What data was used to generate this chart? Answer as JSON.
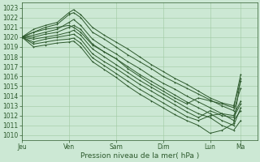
{
  "title": "",
  "xlabel": "Pression niveau de la mer( hPa )",
  "ylabel": "",
  "bg_color": "#cce8d4",
  "plot_bg_color": "#cce8d4",
  "line_color": "#2d5a2d",
  "grid_color": "#9fc9a0",
  "tick_color": "#2d5a2d",
  "ylim": [
    1009.5,
    1023.5
  ],
  "yticks": [
    1010,
    1011,
    1012,
    1013,
    1014,
    1015,
    1016,
    1017,
    1018,
    1019,
    1020,
    1021,
    1022,
    1023
  ],
  "day_positions": [
    0,
    0.2,
    0.4,
    0.6,
    0.8,
    0.93
  ],
  "day_labels": [
    "Jeu",
    "Ven",
    "Sam",
    "Dim",
    "Lun",
    "Ma"
  ],
  "xlim": [
    0.0,
    1.0
  ],
  "lines": [
    [
      [
        0.0,
        1020.0
      ],
      [
        0.05,
        1020.8
      ],
      [
        0.1,
        1021.2
      ],
      [
        0.15,
        1021.5
      ],
      [
        0.2,
        1022.5
      ],
      [
        0.22,
        1022.8
      ],
      [
        0.25,
        1022.3
      ],
      [
        0.3,
        1021.0
      ],
      [
        0.35,
        1020.2
      ],
      [
        0.4,
        1019.5
      ],
      [
        0.45,
        1018.8
      ],
      [
        0.5,
        1018.0
      ],
      [
        0.55,
        1017.2
      ],
      [
        0.6,
        1016.5
      ],
      [
        0.65,
        1015.8
      ],
      [
        0.7,
        1015.2
      ],
      [
        0.75,
        1014.5
      ],
      [
        0.8,
        1013.8
      ],
      [
        0.85,
        1013.3
      ],
      [
        0.9,
        1013.0
      ],
      [
        0.93,
        1015.5
      ]
    ],
    [
      [
        0.0,
        1020.0
      ],
      [
        0.05,
        1020.5
      ],
      [
        0.1,
        1021.0
      ],
      [
        0.15,
        1021.3
      ],
      [
        0.2,
        1022.3
      ],
      [
        0.22,
        1022.5
      ],
      [
        0.25,
        1022.0
      ],
      [
        0.3,
        1020.5
      ],
      [
        0.35,
        1019.8
      ],
      [
        0.4,
        1019.0
      ],
      [
        0.45,
        1018.2
      ],
      [
        0.5,
        1017.5
      ],
      [
        0.55,
        1016.8
      ],
      [
        0.6,
        1016.0
      ],
      [
        0.65,
        1015.4
      ],
      [
        0.7,
        1014.8
      ],
      [
        0.75,
        1014.2
      ],
      [
        0.8,
        1013.6
      ],
      [
        0.85,
        1013.0
      ],
      [
        0.9,
        1012.5
      ],
      [
        0.93,
        1014.8
      ]
    ],
    [
      [
        0.0,
        1020.0
      ],
      [
        0.05,
        1020.2
      ],
      [
        0.1,
        1020.5
      ],
      [
        0.15,
        1020.8
      ],
      [
        0.2,
        1021.5
      ],
      [
        0.22,
        1021.8
      ],
      [
        0.25,
        1021.2
      ],
      [
        0.3,
        1019.8
      ],
      [
        0.35,
        1019.0
      ],
      [
        0.4,
        1018.3
      ],
      [
        0.45,
        1017.5
      ],
      [
        0.5,
        1016.8
      ],
      [
        0.55,
        1016.0
      ],
      [
        0.6,
        1015.3
      ],
      [
        0.65,
        1014.7
      ],
      [
        0.7,
        1014.0
      ],
      [
        0.75,
        1013.4
      ],
      [
        0.8,
        1012.8
      ],
      [
        0.85,
        1012.2
      ],
      [
        0.9,
        1012.0
      ],
      [
        0.93,
        1013.5
      ]
    ],
    [
      [
        0.0,
        1020.0
      ],
      [
        0.05,
        1020.0
      ],
      [
        0.1,
        1020.3
      ],
      [
        0.15,
        1020.5
      ],
      [
        0.2,
        1021.0
      ],
      [
        0.22,
        1021.2
      ],
      [
        0.25,
        1020.8
      ],
      [
        0.3,
        1019.3
      ],
      [
        0.35,
        1018.5
      ],
      [
        0.4,
        1017.8
      ],
      [
        0.45,
        1017.0
      ],
      [
        0.5,
        1016.2
      ],
      [
        0.55,
        1015.5
      ],
      [
        0.6,
        1014.8
      ],
      [
        0.65,
        1014.1
      ],
      [
        0.7,
        1013.4
      ],
      [
        0.75,
        1012.8
      ],
      [
        0.8,
        1012.2
      ],
      [
        0.85,
        1011.5
      ],
      [
        0.9,
        1011.0
      ],
      [
        0.93,
        1012.8
      ]
    ],
    [
      [
        0.0,
        1020.0
      ],
      [
        0.05,
        1019.8
      ],
      [
        0.1,
        1020.0
      ],
      [
        0.15,
        1020.2
      ],
      [
        0.2,
        1020.5
      ],
      [
        0.22,
        1020.7
      ],
      [
        0.25,
        1020.2
      ],
      [
        0.3,
        1018.8
      ],
      [
        0.35,
        1018.0
      ],
      [
        0.4,
        1017.2
      ],
      [
        0.45,
        1016.4
      ],
      [
        0.5,
        1015.6
      ],
      [
        0.55,
        1014.9
      ],
      [
        0.6,
        1014.2
      ],
      [
        0.65,
        1013.5
      ],
      [
        0.7,
        1012.8
      ],
      [
        0.75,
        1012.2
      ],
      [
        0.8,
        1011.8
      ],
      [
        0.85,
        1011.0
      ],
      [
        0.9,
        1010.5
      ],
      [
        0.93,
        1011.5
      ]
    ],
    [
      [
        0.0,
        1020.0
      ],
      [
        0.05,
        1019.5
      ],
      [
        0.1,
        1019.8
      ],
      [
        0.15,
        1020.0
      ],
      [
        0.2,
        1020.2
      ],
      [
        0.22,
        1020.3
      ],
      [
        0.25,
        1019.8
      ],
      [
        0.3,
        1018.3
      ],
      [
        0.35,
        1017.5
      ],
      [
        0.4,
        1016.8
      ],
      [
        0.45,
        1016.0
      ],
      [
        0.5,
        1015.2
      ],
      [
        0.55,
        1014.5
      ],
      [
        0.6,
        1013.8
      ],
      [
        0.65,
        1013.1
      ],
      [
        0.7,
        1012.4
      ],
      [
        0.75,
        1011.8
      ],
      [
        0.8,
        1012.5
      ],
      [
        0.85,
        1012.0
      ],
      [
        0.9,
        1011.8
      ],
      [
        0.93,
        1013.2
      ]
    ],
    [
      [
        0.0,
        1020.0
      ],
      [
        0.05,
        1019.3
      ],
      [
        0.1,
        1019.5
      ],
      [
        0.15,
        1019.7
      ],
      [
        0.2,
        1019.8
      ],
      [
        0.22,
        1019.9
      ],
      [
        0.25,
        1019.4
      ],
      [
        0.3,
        1017.9
      ],
      [
        0.35,
        1017.1
      ],
      [
        0.4,
        1016.3
      ],
      [
        0.45,
        1015.5
      ],
      [
        0.5,
        1014.7
      ],
      [
        0.55,
        1014.0
      ],
      [
        0.6,
        1013.3
      ],
      [
        0.65,
        1012.6
      ],
      [
        0.7,
        1011.9
      ],
      [
        0.75,
        1011.5
      ],
      [
        0.8,
        1012.0
      ],
      [
        0.85,
        1012.2
      ],
      [
        0.9,
        1011.5
      ],
      [
        0.93,
        1012.5
      ]
    ],
    [
      [
        0.0,
        1020.0
      ],
      [
        0.05,
        1019.0
      ],
      [
        0.1,
        1019.2
      ],
      [
        0.15,
        1019.4
      ],
      [
        0.2,
        1019.5
      ],
      [
        0.22,
        1019.6
      ],
      [
        0.25,
        1019.0
      ],
      [
        0.3,
        1017.5
      ],
      [
        0.35,
        1016.7
      ],
      [
        0.4,
        1015.9
      ],
      [
        0.45,
        1015.0
      ],
      [
        0.5,
        1014.2
      ],
      [
        0.55,
        1013.5
      ],
      [
        0.6,
        1012.8
      ],
      [
        0.65,
        1012.1
      ],
      [
        0.7,
        1011.5
      ],
      [
        0.75,
        1011.0
      ],
      [
        0.8,
        1010.2
      ],
      [
        0.85,
        1010.5
      ],
      [
        0.9,
        1011.2
      ],
      [
        0.93,
        1015.8
      ]
    ],
    [
      [
        0.0,
        1020.0
      ],
      [
        0.05,
        1020.5
      ],
      [
        0.1,
        1020.8
      ],
      [
        0.15,
        1021.0
      ],
      [
        0.2,
        1021.2
      ],
      [
        0.22,
        1021.0
      ],
      [
        0.25,
        1020.5
      ],
      [
        0.3,
        1019.2
      ],
      [
        0.35,
        1018.5
      ],
      [
        0.4,
        1017.8
      ],
      [
        0.45,
        1016.8
      ],
      [
        0.5,
        1016.0
      ],
      [
        0.55,
        1015.2
      ],
      [
        0.6,
        1014.5
      ],
      [
        0.65,
        1013.8
      ],
      [
        0.7,
        1013.2
      ],
      [
        0.75,
        1013.8
      ],
      [
        0.8,
        1013.5
      ],
      [
        0.85,
        1013.2
      ],
      [
        0.9,
        1012.8
      ],
      [
        0.93,
        1016.2
      ]
    ]
  ],
  "marker_size": 2.0,
  "linewidth": 0.7,
  "font_size_tick": 5.5,
  "font_size_xlabel": 6.5
}
